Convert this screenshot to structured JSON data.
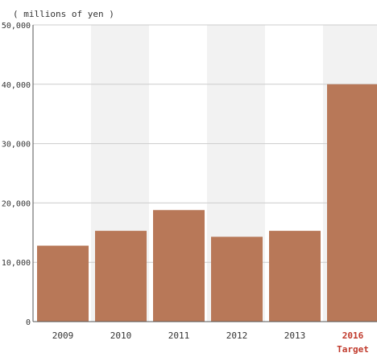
{
  "chart_data": {
    "type": "bar",
    "unit_label": "( millions of yen )",
    "categories": [
      "2009",
      "2010",
      "2011",
      "2012",
      "2013",
      "2016"
    ],
    "category_sublabels": [
      "",
      "",
      "",
      "",
      "",
      "Target"
    ],
    "values": [
      12800,
      15300,
      18800,
      14300,
      15300,
      40000
    ],
    "ylim": [
      0,
      50000
    ],
    "yticks": [
      0,
      10000,
      20000,
      30000,
      40000,
      50000
    ],
    "ytick_labels": [
      "0",
      "10,000",
      "20,000",
      "30,000",
      "40,000",
      "50,000"
    ],
    "grid": true,
    "legend": "none",
    "colors": {
      "bar": "#b87858",
      "band": "#f2f2f2",
      "grid": "#cccccc",
      "axis": "#555555",
      "text": "#333333",
      "highlight_text": "#c0392b"
    },
    "highlight_index": 5
  }
}
